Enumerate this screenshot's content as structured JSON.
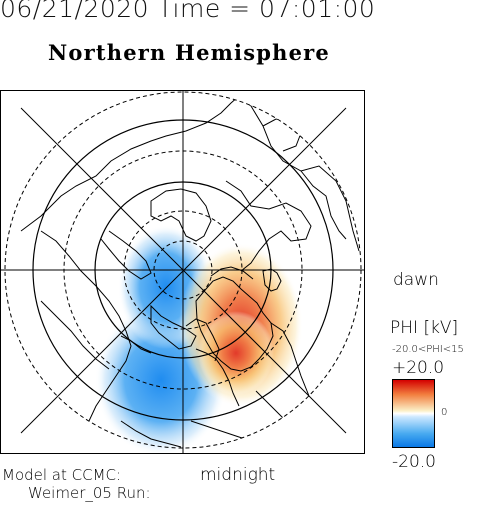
{
  "header": {
    "date_time": "06/21/2020 Time = 07:01:00",
    "hemisphere": "Northern Hemisphere"
  },
  "plot": {
    "right_label": "dawn",
    "bottom_label": "midnight",
    "quantity": "potential",
    "grid": "polar latitude circles with meridian spokes"
  },
  "legend": {
    "title": "PHI [kV]",
    "range_text": "-20.0<PHI<15",
    "max_label": "+20.0",
    "zero_label": "0",
    "min_label": "-20.0",
    "colors": {
      "positive": "#d40000",
      "neutral": "#ffffff",
      "negative": "#0a78e6"
    }
  },
  "footer": {
    "model_label": "Model at CCMC:",
    "run_label": "Weimer_05 Run:"
  }
}
